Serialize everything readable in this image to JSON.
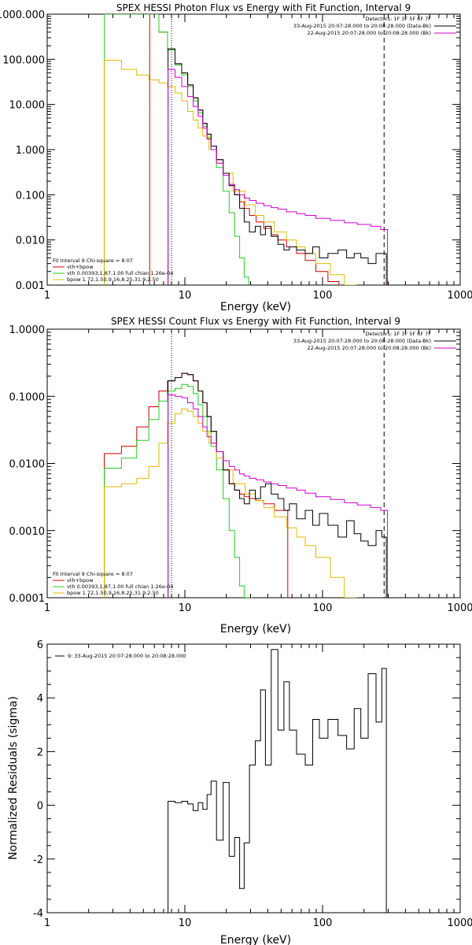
{
  "colors": {
    "total": "#cc0000",
    "vth": "#22cc22",
    "bpow": "#ddbb00",
    "data": "#000000",
    "background": "#cc00cc"
  },
  "chart_data": [
    {
      "type": "line",
      "title": "SPEX HESSI Photon Flux vs Energy with Fit Function, Interval 9",
      "xlabel": "Energy (keV)",
      "ylabel": "",
      "xscale": "log",
      "yscale": "log",
      "xlim": [
        1,
        1000
      ],
      "ylim": [
        0.001,
        1000
      ],
      "xticklabels": [
        "1",
        "10",
        "100",
        "1000"
      ],
      "yticklabels": [
        "0.001",
        "0.010",
        "0.100",
        "1.000",
        "10.000",
        "100.000",
        "1000.000"
      ],
      "vertical_lines": [
        {
          "x": 8,
          "style": "dotted"
        },
        {
          "x": 280,
          "style": "dashed"
        }
      ],
      "legend_right": [
        "Detectors: 1F 3F 5F 6F 7F",
        "33-Aug-2015 20:07:28.000 to 20:08:28.000 (Data-Bk)",
        "22-Aug-2015 20:07:28.000 to 20:08:28.000 (Bk)"
      ],
      "legend_left": [
        "Fit Interval 9   Chi-square = 8.07",
        "vth+bpow",
        "vth 0.00393,1.87,1.00  full chian 1.26e-04",
        "bpow 1.72,1.50,9.16,8.25,31.9,2.50"
      ],
      "series": [
        {
          "name": "vth+bpow",
          "color": "#cc0000",
          "x": [
            6,
            7,
            8,
            9,
            10,
            11,
            12,
            13,
            14,
            15,
            16,
            18,
            20,
            22,
            24,
            26,
            28,
            31,
            35,
            40,
            45,
            50,
            60,
            70,
            80,
            100,
            120
          ],
          "y": [
            1000,
            400,
            170,
            80,
            50,
            27,
            14,
            7.5,
            3.8,
            2.2,
            1.2,
            0.6,
            0.3,
            0.16,
            0.1,
            0.07,
            0.05,
            0.035,
            0.025,
            0.018,
            0.013,
            0.01,
            0.007,
            0.005,
            0.0035,
            0.002,
            0.0012
          ]
        },
        {
          "name": "vth",
          "color": "#22cc22",
          "x": [
            3,
            4,
            5,
            6,
            7,
            8,
            9,
            10,
            11,
            12,
            13,
            14,
            15,
            16,
            18,
            20,
            22,
            24,
            26,
            28
          ],
          "y": [
            1000,
            1000,
            1000,
            1000,
            400,
            160,
            75,
            45,
            25,
            12,
            6.5,
            3.3,
            1.8,
            1.0,
            0.4,
            0.12,
            0.04,
            0.012,
            0.004,
            0.0015
          ]
        },
        {
          "name": "bpow",
          "color": "#ddbb00",
          "x": [
            3,
            4,
            5,
            6,
            7,
            8,
            9,
            10,
            11,
            12,
            13,
            14,
            16,
            18,
            20,
            25,
            30,
            35,
            40,
            50,
            60,
            70,
            80,
            100,
            130,
            160
          ],
          "y": [
            95,
            60,
            45,
            35,
            30,
            25,
            18,
            12,
            7,
            4.5,
            3,
            2,
            1,
            0.5,
            0.3,
            0.12,
            0.06,
            0.035,
            0.025,
            0.015,
            0.01,
            0.007,
            0.005,
            0.003,
            0.0017,
            0.001
          ]
        },
        {
          "name": "data",
          "color": "#000000",
          "x": [
            8,
            9,
            10,
            11,
            12,
            13,
            14,
            15,
            16,
            18,
            20,
            22,
            24,
            26,
            28,
            31,
            34,
            37,
            40,
            45,
            50,
            55,
            60,
            70,
            80,
            90,
            100,
            120,
            140,
            160,
            180,
            200,
            230,
            260,
            280
          ],
          "y": [
            170,
            80,
            50,
            27,
            14,
            7.5,
            3.8,
            2.2,
            1.2,
            0.6,
            0.3,
            0.16,
            0.1,
            0.05,
            0.025,
            0.015,
            0.02,
            0.013,
            0.02,
            0.012,
            0.008,
            0.006,
            0.007,
            0.006,
            0.005,
            0.007,
            0.004,
            0.005,
            0.006,
            0.004,
            0.005,
            0.004,
            0.003,
            0.005,
            0.005
          ]
        },
        {
          "name": "background",
          "color": "#cc00cc",
          "x": [
            8,
            9,
            10,
            11,
            12,
            13,
            14,
            15,
            16,
            18,
            20,
            22,
            24,
            26,
            28,
            31,
            35,
            40,
            45,
            50,
            60,
            70,
            80,
            100,
            130,
            160,
            200,
            250,
            280
          ],
          "y": [
            60,
            40,
            25,
            15,
            9,
            5.5,
            3,
            1.7,
            1,
            0.5,
            0.27,
            0.17,
            0.13,
            0.1,
            0.085,
            0.075,
            0.065,
            0.057,
            0.052,
            0.048,
            0.042,
            0.038,
            0.035,
            0.03,
            0.027,
            0.024,
            0.022,
            0.02,
            0.017
          ]
        }
      ]
    },
    {
      "type": "line",
      "title": "SPEX HESSI Count Flux vs Energy with Fit Function, Interval 9",
      "xlabel": "Energy (keV)",
      "ylabel": "",
      "xscale": "log",
      "yscale": "log",
      "xlim": [
        1,
        1000
      ],
      "ylim": [
        0.0001,
        1
      ],
      "xticklabels": [
        "1",
        "10",
        "100",
        "1000"
      ],
      "yticklabels": [
        "0.0001",
        "0.0010",
        "0.0100",
        "0.1000",
        "1.0000"
      ],
      "vertical_lines": [
        {
          "x": 8,
          "style": "dotted"
        },
        {
          "x": 280,
          "style": "dashed"
        }
      ],
      "legend_right": [
        "Detectors: 1F 3F 5F 6F 7F",
        "33-Aug-2015 20:07:28.000 to 20:08:28.000 (Data-Bk)",
        "22-Aug-2015 20:07:28.000 to 20:08:28.000 (Bk)"
      ],
      "legend_left": [
        "Fit Interval 9   Chi-square = 8.07",
        "vth+bpow",
        "vth 0.00393,1.87,1.00  full chian 1.26e-04",
        "bpow 1.72,1.50,9.16,8.25,31.9,2.50"
      ],
      "series": [
        {
          "name": "vth+bpow",
          "color": "#cc0000",
          "x": [
            3,
            4,
            5,
            6,
            7,
            8,
            9,
            10,
            11,
            12,
            13,
            14,
            15,
            16,
            18,
            20,
            22,
            24,
            26,
            28,
            31,
            35,
            40,
            50
          ],
          "y": [
            0.014,
            0.018,
            0.035,
            0.07,
            0.12,
            0.17,
            0.19,
            0.22,
            0.21,
            0.17,
            0.12,
            0.08,
            0.05,
            0.03,
            0.015,
            0.008,
            0.005,
            0.004,
            0.0035,
            0.0032,
            0.003,
            0.0028,
            0.0025,
            0.002
          ]
        },
        {
          "name": "vth",
          "color": "#22cc22",
          "x": [
            3,
            4,
            5,
            6,
            7,
            8,
            9,
            10,
            11,
            12,
            13,
            14,
            15,
            16,
            18,
            20,
            22,
            24,
            26,
            28,
            30
          ],
          "y": [
            0.0085,
            0.012,
            0.022,
            0.045,
            0.085,
            0.12,
            0.13,
            0.15,
            0.14,
            0.11,
            0.075,
            0.05,
            0.03,
            0.018,
            0.008,
            0.003,
            0.001,
            0.0004,
            0.00015,
            0.0001,
            0.0001
          ]
        },
        {
          "name": "bpow",
          "color": "#ddbb00",
          "x": [
            3,
            4,
            5,
            6,
            7,
            8,
            9,
            10,
            11,
            12,
            13,
            14,
            16,
            18,
            20,
            25,
            30,
            35,
            40,
            50,
            60,
            70,
            80,
            100,
            130,
            160
          ],
          "y": [
            0.0045,
            0.005,
            0.006,
            0.009,
            0.02,
            0.04,
            0.055,
            0.065,
            0.06,
            0.05,
            0.04,
            0.03,
            0.02,
            0.012,
            0.008,
            0.005,
            0.0035,
            0.0028,
            0.0022,
            0.0016,
            0.0011,
            0.0008,
            0.0006,
            0.0004,
            0.0002,
            0.0001
          ]
        },
        {
          "name": "data",
          "color": "#000000",
          "x": [
            8,
            9,
            10,
            11,
            12,
            13,
            14,
            15,
            16,
            18,
            20,
            22,
            24,
            26,
            28,
            31,
            34,
            37,
            40,
            45,
            50,
            55,
            60,
            70,
            80,
            90,
            100,
            120,
            140,
            160,
            180,
            200,
            230,
            260,
            280
          ],
          "y": [
            0.17,
            0.19,
            0.22,
            0.21,
            0.17,
            0.12,
            0.08,
            0.05,
            0.03,
            0.015,
            0.008,
            0.005,
            0.004,
            0.003,
            0.0025,
            0.004,
            0.003,
            0.0045,
            0.005,
            0.0035,
            0.003,
            0.002,
            0.0025,
            0.0015,
            0.002,
            0.0012,
            0.0018,
            0.0012,
            0.0008,
            0.0014,
            0.0009,
            0.0007,
            0.0006,
            0.001,
            0.0008
          ]
        },
        {
          "name": "background",
          "color": "#cc00cc",
          "x": [
            8,
            9,
            10,
            11,
            12,
            13,
            14,
            15,
            16,
            18,
            20,
            22,
            24,
            26,
            28,
            31,
            35,
            40,
            45,
            50,
            60,
            70,
            80,
            100,
            130,
            160,
            200,
            250,
            280
          ],
          "y": [
            0.105,
            0.1,
            0.095,
            0.08,
            0.065,
            0.05,
            0.035,
            0.025,
            0.02,
            0.015,
            0.011,
            0.009,
            0.008,
            0.007,
            0.0065,
            0.006,
            0.0057,
            0.0053,
            0.005,
            0.0047,
            0.0043,
            0.004,
            0.0036,
            0.0032,
            0.0029,
            0.0026,
            0.0024,
            0.0022,
            0.002
          ]
        }
      ]
    },
    {
      "type": "line",
      "title": "",
      "xlabel": "Energy (keV)",
      "ylabel": "Normalized Residuals (sigma)",
      "xscale": "log",
      "yscale": "linear",
      "xlim": [
        1,
        1000
      ],
      "ylim": [
        -4,
        6
      ],
      "xticklabels": [
        "1",
        "10",
        "100",
        "1000"
      ],
      "yticklabels": [
        "-4",
        "-2",
        "0",
        "2",
        "4",
        "6"
      ],
      "legend_right": [],
      "legend_left": [
        "9: 33-Aug-2015 20:07:28.000 to 20:08:28.000"
      ],
      "series": [
        {
          "name": "",
          "color": "#000000",
          "x": [
            8,
            9,
            10,
            11,
            12,
            13,
            14,
            15,
            16,
            18,
            20,
            22,
            24,
            26,
            28,
            31,
            34,
            37,
            40,
            45,
            50,
            55,
            60,
            70,
            80,
            90,
            100,
            120,
            140,
            160,
            180,
            200,
            230,
            260,
            280
          ],
          "y": [
            0.15,
            0.1,
            0.15,
            0.05,
            -0.2,
            0.1,
            -0.15,
            0.4,
            0.9,
            -1.3,
            0.85,
            -1.9,
            -1.2,
            -3.1,
            -1.4,
            1.5,
            2.4,
            4.3,
            1.5,
            5.8,
            2.8,
            4.6,
            2.8,
            1.9,
            1.5,
            3.2,
            2.5,
            3.2,
            2.6,
            2.1,
            3.6,
            2.5,
            4.9,
            3.1,
            5.1
          ]
        }
      ]
    }
  ]
}
